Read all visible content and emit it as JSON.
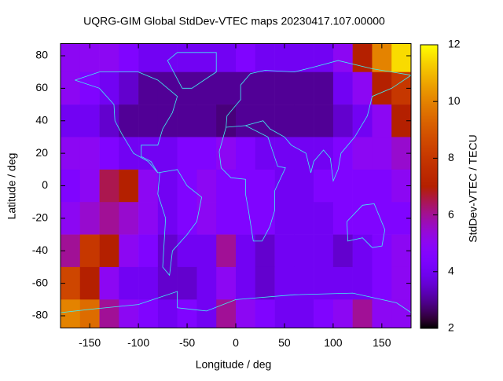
{
  "chart_data": {
    "type": "heatmap",
    "title": "UQRG-GIM Global StdDev-VTEC maps 20230417.107.00000",
    "x_label": "Longitude / deg",
    "y_label": "Latitude / deg",
    "colorbar_label": "StdDev-VTEC / TECU",
    "x": [
      -170,
      -150,
      -130,
      -110,
      -90,
      -70,
      -50,
      -30,
      -10,
      10,
      30,
      50,
      70,
      90,
      110,
      130,
      150,
      170
    ],
    "y": [
      80,
      60,
      40,
      20,
      0,
      -20,
      -40,
      -60,
      -80
    ],
    "z": [
      [
        5,
        5,
        5,
        4.5,
        4,
        4,
        4,
        4,
        4,
        4.5,
        4,
        4,
        4,
        4,
        5,
        7,
        10,
        11.5
      ],
      [
        5,
        4.5,
        4,
        3.5,
        3,
        3,
        3,
        3,
        3,
        3,
        3,
        3,
        3,
        3,
        4,
        5,
        7,
        8
      ],
      [
        4,
        4,
        3.5,
        3,
        3,
        3,
        3,
        3,
        2.8,
        3,
        3,
        3,
        3,
        3,
        3.5,
        4,
        5,
        7
      ],
      [
        5,
        5,
        4.5,
        4,
        4,
        4,
        4.5,
        4.5,
        5,
        4.5,
        4,
        4,
        4,
        4,
        4.5,
        5,
        5,
        5.5
      ],
      [
        4.5,
        5,
        6.5,
        7,
        5,
        4,
        4.5,
        5,
        4.5,
        4.5,
        4.5,
        4,
        4,
        4.5,
        4.5,
        4.5,
        4.5,
        5
      ],
      [
        5,
        5.5,
        6,
        5.5,
        5,
        4,
        4.5,
        5,
        4.5,
        4.5,
        4.5,
        4,
        4,
        4,
        4.5,
        4.5,
        4.5,
        4.5
      ],
      [
        6,
        8,
        7,
        5,
        4.5,
        3.5,
        4,
        4,
        6,
        4,
        3.5,
        4,
        4,
        4,
        3.5,
        4,
        4.5,
        5
      ],
      [
        8.5,
        7,
        5,
        4,
        4,
        3.5,
        3.5,
        4,
        5,
        4,
        3.5,
        4,
        4,
        4,
        4,
        4,
        4.5,
        5
      ],
      [
        10,
        9.5,
        6,
        5,
        4.5,
        4,
        4.5,
        4,
        6,
        5,
        4.5,
        4,
        4,
        4.5,
        5,
        6,
        5,
        5
      ]
    ],
    "cell_size": 20,
    "xlim": [
      -180,
      180
    ],
    "ylim": [
      -87.5,
      87.5
    ],
    "xticks": [
      -150,
      -100,
      -50,
      0,
      50,
      100,
      150
    ],
    "yticks": [
      -80,
      -60,
      -40,
      -20,
      0,
      20,
      40,
      60,
      80
    ],
    "clim": [
      2,
      12
    ],
    "cticks": [
      2,
      4,
      6,
      8,
      10,
      12
    ],
    "colormap": "gnuplot-7-5-15"
  }
}
